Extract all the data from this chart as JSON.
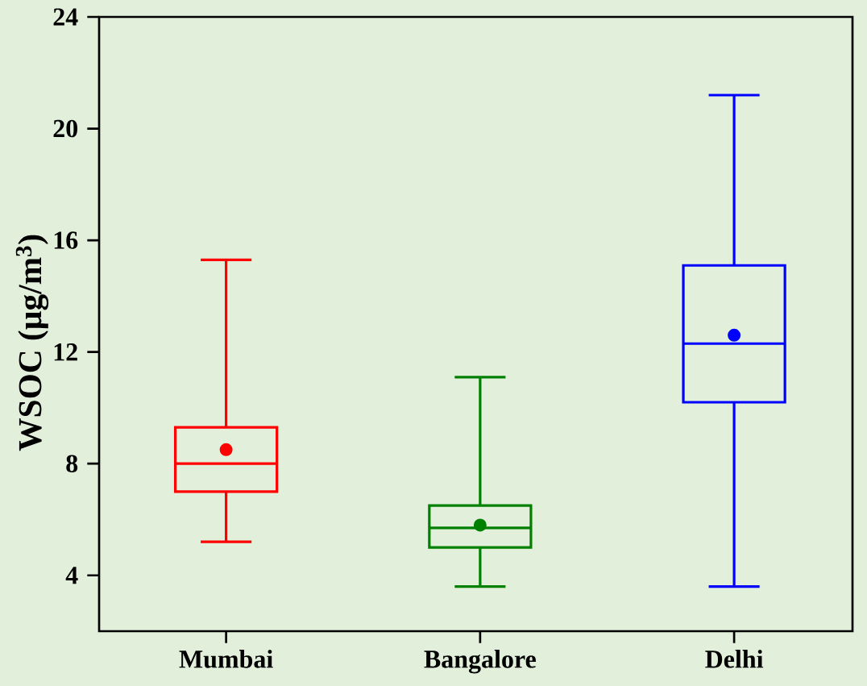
{
  "chart_data": {
    "type": "box",
    "ylabel": "WSOC (µg/m$^{3}$)",
    "categories": [
      "Mumbai",
      "Bangalore",
      "Delhi"
    ],
    "colors": [
      "#ff0000",
      "#008000",
      "#0000ff"
    ],
    "boxes": [
      {
        "low": 5.2,
        "q1": 7.0,
        "median": 8.0,
        "q3": 9.3,
        "high": 15.3,
        "mean": 8.5
      },
      {
        "low": 3.6,
        "q1": 5.0,
        "median": 5.7,
        "q3": 6.5,
        "high": 11.1,
        "mean": 5.8
      },
      {
        "low": 3.6,
        "q1": 10.2,
        "median": 12.3,
        "q3": 15.1,
        "high": 21.2,
        "mean": 12.6
      }
    ],
    "ylim": [
      2,
      24
    ],
    "yticks": [
      4,
      8,
      12,
      16,
      20,
      24
    ],
    "marker": "circle"
  }
}
